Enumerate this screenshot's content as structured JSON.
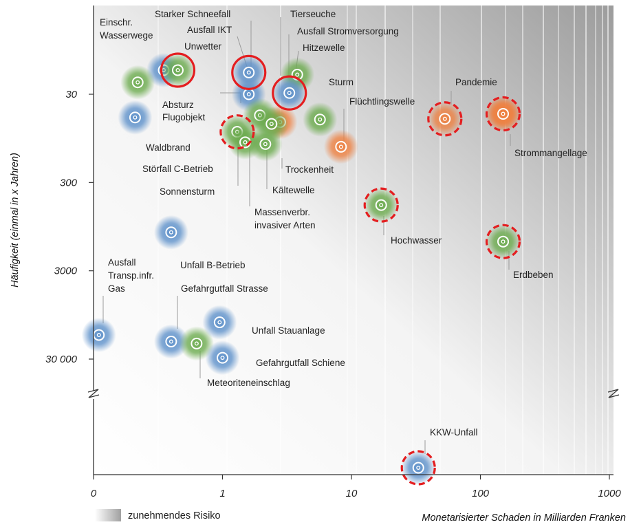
{
  "chart_data": {
    "type": "scatter",
    "title": "",
    "xlabel": "Monetarisierter Schaden in Milliarden Franken",
    "ylabel": "Häufigkeit (einmal in x Jahren)",
    "x_scale": "log",
    "y_scale": "log",
    "x_ticks": [
      {
        "value": 0.1,
        "label": "0"
      },
      {
        "value": 1,
        "label": "1"
      },
      {
        "value": 10,
        "label": "10"
      },
      {
        "value": 100,
        "label": "100"
      },
      {
        "value": 1000,
        "label": "1000"
      }
    ],
    "y_ticks": [
      {
        "value": 30,
        "label": "30"
      },
      {
        "value": 300,
        "label": "300"
      },
      {
        "value": 3000,
        "label": "3000"
      },
      {
        "value": 30000,
        "label": "30 000"
      }
    ],
    "xlim": [
      0.1,
      1000
    ],
    "ylim": [
      4,
      30000
    ],
    "legend": {
      "label": "zunehmendes Risiko",
      "position": "bottom-left"
    },
    "colors": {
      "blue": "#5b8fc9",
      "green": "#6aaa4c",
      "orange": "#ee8040",
      "highlight": "#e41e20"
    },
    "points": [
      {
        "label": "Einschr. Wasserwege",
        "x": 0.35,
        "y": 16,
        "group": "blue"
      },
      {
        "label": "Unwetter",
        "x": 0.45,
        "y": 16,
        "group": "green",
        "highlight": "solid"
      },
      {
        "label": "",
        "x": 0.22,
        "y": 22,
        "group": "green"
      },
      {
        "label": "Starker Schneefall",
        "x": 1.6,
        "y": 17,
        "group": "blue",
        "highlight": "solid"
      },
      {
        "label": "Ausfall IKT",
        "x": 1.6,
        "y": 30,
        "group": "blue"
      },
      {
        "label": "Tierseuche",
        "x": 3.8,
        "y": 18,
        "group": "green"
      },
      {
        "label": "Ausfall Stromversorgung",
        "x": 3.3,
        "y": 29,
        "group": "blue",
        "highlight": "solid"
      },
      {
        "label": "Hitzewelle",
        "x": 2.8,
        "y": 62,
        "group": "orange"
      },
      {
        "label": "Absturz Flugobjekt",
        "x": 1.3,
        "y": 80,
        "group": "green",
        "highlight": "dashed"
      },
      {
        "label": "Waldbrand",
        "x": 0.21,
        "y": 55,
        "group": "blue"
      },
      {
        "label": "Störfall C-Betrieb",
        "x": 1.5,
        "y": 105,
        "group": "green"
      },
      {
        "label": "Sonnensturm",
        "x": 1.95,
        "y": 52,
        "group": "green"
      },
      {
        "label": "Kältewelle",
        "x": 2.15,
        "y": 110,
        "group": "green"
      },
      {
        "label": "Massenverbr. invasiver Arten",
        "x": 2.4,
        "y": 65,
        "group": "green"
      },
      {
        "label": "Sturm",
        "x": 5.7,
        "y": 58,
        "group": "green"
      },
      {
        "label": "Trockenheit",
        "x": 8.3,
        "y": 118,
        "group": "orange"
      },
      {
        "label": "Flüchtlingswelle",
        "x": 53,
        "y": 57,
        "group": "orange",
        "highlight": "dashed"
      },
      {
        "label": "Pandemie",
        "x": 150,
        "y": 50,
        "group": "orange",
        "highlight": "dashed"
      },
      {
        "label": "Strommangellage",
        "x": 150,
        "y": 50,
        "group": "orange"
      },
      {
        "label": "Hochwasser",
        "x": 17,
        "y": 540,
        "group": "green",
        "highlight": "dashed"
      },
      {
        "label": "Erdbeben",
        "x": 150,
        "y": 1400,
        "group": "green",
        "highlight": "dashed"
      },
      {
        "label": "Unfall B-Betrieb",
        "x": 0.4,
        "y": 1100,
        "group": "blue"
      },
      {
        "label": "Ausfall Transp.infr. Gas",
        "x": 0.11,
        "y": 16000,
        "group": "blue"
      },
      {
        "label": "Gefahrgutfall Strasse",
        "x": 0.4,
        "y": 19000,
        "group": "blue"
      },
      {
        "label": "Meteoriteneinschlag",
        "x": 0.63,
        "y": 20000,
        "group": "green"
      },
      {
        "label": "Unfall Stauanlage",
        "x": 0.95,
        "y": 11500,
        "group": "blue"
      },
      {
        "label": "Gefahrgutfall Schiene",
        "x": 1.0,
        "y": 29000,
        "group": "blue"
      },
      {
        "label": "KKW-Unfall",
        "x": 33,
        "y": "beyond axis break",
        "group": "blue",
        "highlight": "dashed"
      }
    ]
  }
}
